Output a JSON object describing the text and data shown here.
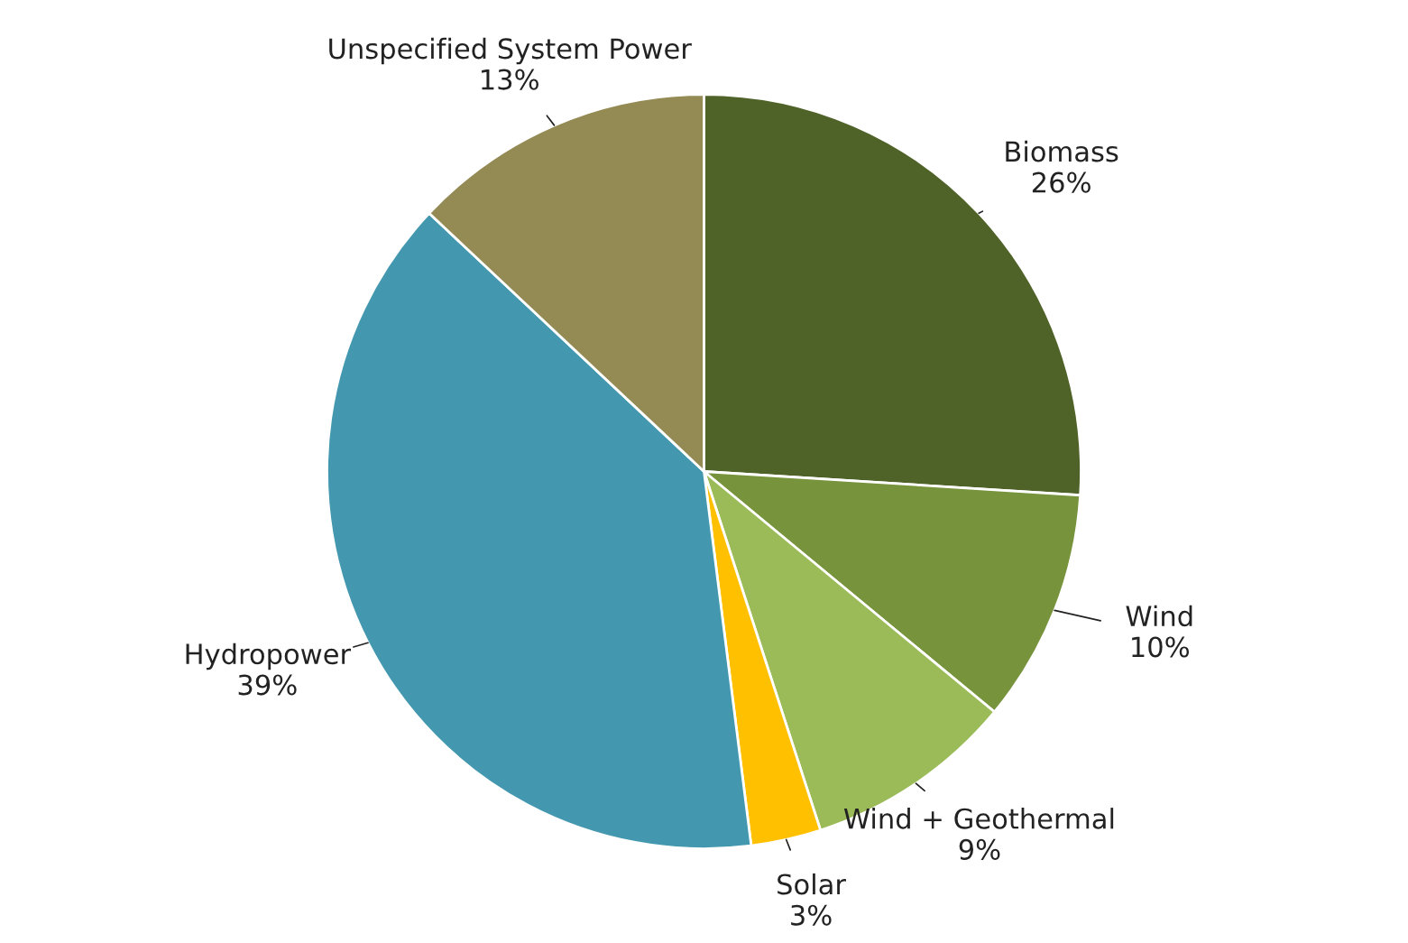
{
  "chart_data": {
    "type": "pie",
    "categories": [
      "Biomass",
      "Wind",
      "Wind + Geothermal",
      "Solar",
      "Hydropower",
      "Unspecified System Power"
    ],
    "values": [
      26,
      10,
      9,
      3,
      39,
      13
    ],
    "colors": [
      "#4f6228",
      "#77933c",
      "#9bbb59",
      "#ffc000",
      "#4398b0",
      "#948a54"
    ],
    "value_labels": [
      "26%",
      "10%",
      "9%",
      "3%",
      "39%",
      "13%"
    ]
  }
}
